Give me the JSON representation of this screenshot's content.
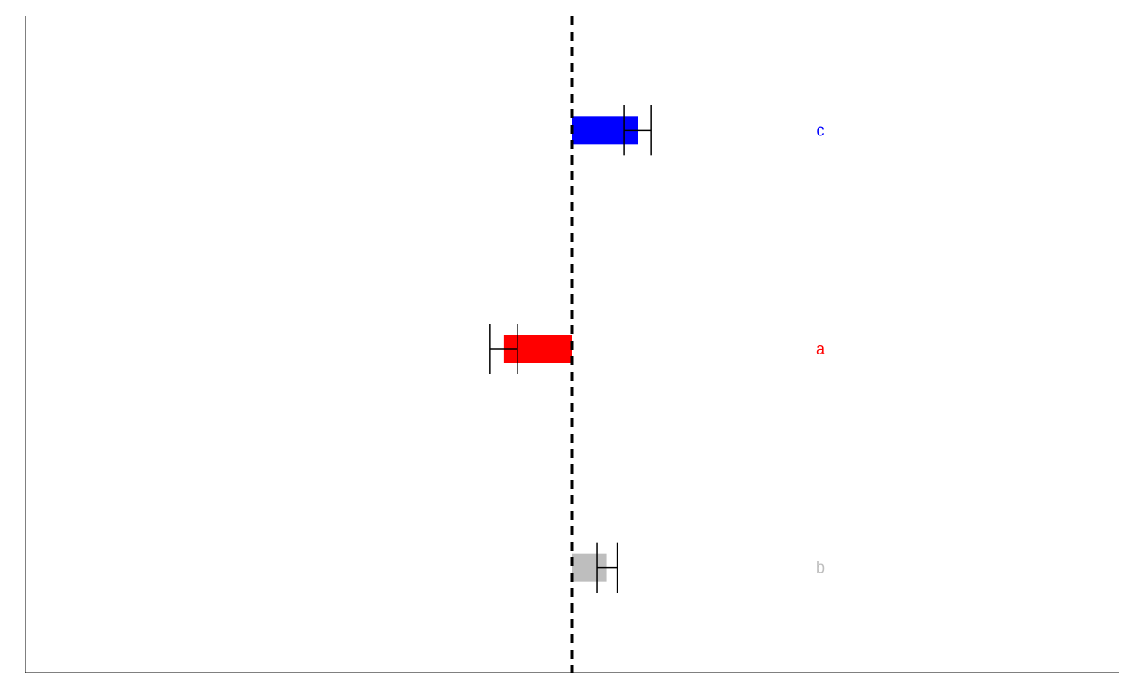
{
  "chart_data": {
    "type": "bar",
    "orientation": "horizontal",
    "reference_line": {
      "x": 0,
      "style": "dashed",
      "color": "#000000"
    },
    "grid": false,
    "legend": "none",
    "categories": [
      "c",
      "a",
      "b"
    ],
    "bars": [
      {
        "label": "c",
        "value": 0.24,
        "err_low": 0.19,
        "err_high": 0.29,
        "color": "#0000ff"
      },
      {
        "label": "a",
        "value": -0.25,
        "err_low": -0.3,
        "err_high": -0.2,
        "color": "#ff0000"
      },
      {
        "label": "b",
        "value": 0.125,
        "err_low": 0.09,
        "err_high": 0.165,
        "color": "#bebebe"
      }
    ],
    "xlim": [
      -2,
      2
    ]
  }
}
